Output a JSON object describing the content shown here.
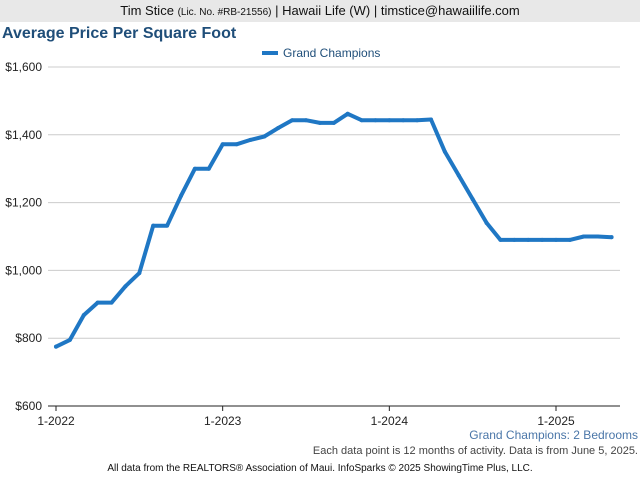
{
  "header": {
    "agent_name": "Tim Stice",
    "license": "(Lic. No. #RB-21556)",
    "company_and_email": "| Hawaii Life (W) | timstice@hawaiilife.com"
  },
  "chart_data": {
    "type": "line",
    "title": "Average Price Per Square Foot",
    "xlabel": "",
    "ylabel": "",
    "ylim": [
      600,
      1600
    ],
    "y_ticks": [
      600,
      800,
      1000,
      1200,
      1400,
      1600
    ],
    "y_tick_labels": [
      "$600",
      "$800",
      "$1,000",
      "$1,200",
      "$1,400",
      "$1,600"
    ],
    "x_range": [
      "2022-01",
      "2025-05"
    ],
    "x_ticks": [
      "2022-01",
      "2023-01",
      "2024-01",
      "2025-01"
    ],
    "x_tick_labels": [
      "1-2022",
      "1-2023",
      "1-2024",
      "1-2025"
    ],
    "grid": "horizontal",
    "legend": "top-center",
    "series": [
      {
        "name": "Grand Champions",
        "color": "#1f77c4",
        "points": [
          [
            "2022-01",
            775
          ],
          [
            "2022-02",
            795
          ],
          [
            "2022-03",
            868
          ],
          [
            "2022-04",
            905
          ],
          [
            "2022-05",
            905
          ],
          [
            "2022-06",
            953
          ],
          [
            "2022-07",
            992
          ],
          [
            "2022-08",
            1132
          ],
          [
            "2022-09",
            1132
          ],
          [
            "2022-10",
            1220
          ],
          [
            "2022-11",
            1300
          ],
          [
            "2022-12",
            1300
          ],
          [
            "2023-01",
            1372
          ],
          [
            "2023-02",
            1372
          ],
          [
            "2023-03",
            1385
          ],
          [
            "2023-04",
            1395
          ],
          [
            "2023-05",
            1420
          ],
          [
            "2023-06",
            1443
          ],
          [
            "2023-07",
            1443
          ],
          [
            "2023-08",
            1435
          ],
          [
            "2023-09",
            1435
          ],
          [
            "2023-10",
            1462
          ],
          [
            "2023-11",
            1443
          ],
          [
            "2023-12",
            1443
          ],
          [
            "2024-01",
            1443
          ],
          [
            "2024-02",
            1443
          ],
          [
            "2024-03",
            1443
          ],
          [
            "2024-04",
            1445
          ],
          [
            "2024-05",
            1350
          ],
          [
            "2024-06",
            1280
          ],
          [
            "2024-07",
            1210
          ],
          [
            "2024-08",
            1140
          ],
          [
            "2024-09",
            1090
          ],
          [
            "2024-10",
            1090
          ],
          [
            "2024-11",
            1090
          ],
          [
            "2024-12",
            1090
          ],
          [
            "2025-01",
            1090
          ],
          [
            "2025-02",
            1090
          ],
          [
            "2025-03",
            1100
          ],
          [
            "2025-04",
            1100
          ],
          [
            "2025-05",
            1098
          ]
        ]
      }
    ],
    "caption": "Grand Champions: 2 Bedrooms",
    "note": "Each data point is 12 months of activity. Data is from June 5, 2025."
  },
  "footer": "All data from the REALTORS® Association of Maui. InfoSparks © 2025 ShowingTime Plus, LLC."
}
